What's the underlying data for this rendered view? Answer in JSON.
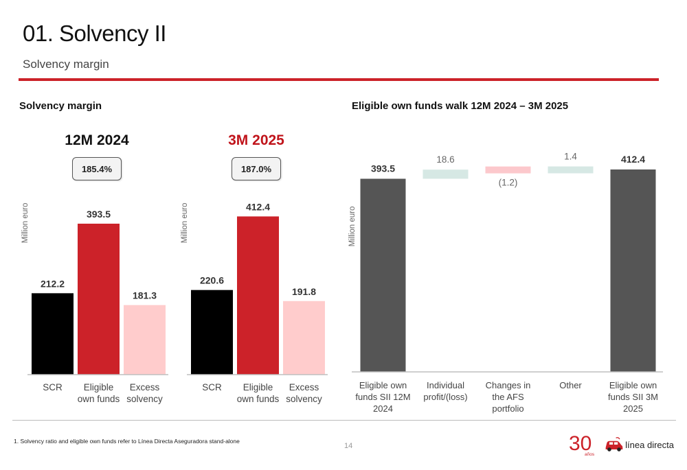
{
  "header": {
    "title": "01. Solvency II",
    "subtitle": "Solvency margin"
  },
  "left_section": {
    "title": "Solvency margin",
    "unit_label": "Million euro",
    "periods": [
      {
        "label": "12M 2024",
        "color": "#111111",
        "ratio": "185.4%"
      },
      {
        "label": "3M 2025",
        "color": "#c0141b",
        "ratio": "187.0%"
      }
    ]
  },
  "right_section": {
    "title": "Eligible own funds walk 12M 2024 – 3M 2025",
    "unit_label": "Million euro"
  },
  "chart_data": [
    {
      "type": "bar",
      "title": "12M 2024",
      "ylabel": "Million euro",
      "categories": [
        "SCR",
        "Eligible own funds",
        "Excess solvency"
      ],
      "values": [
        212.2,
        393.5,
        181.3
      ],
      "data_labels": [
        "212.2",
        "393.5",
        "181.3"
      ],
      "colors": [
        "#000000",
        "#cc2229",
        "#ffcccc"
      ],
      "ylim": [
        0,
        440
      ]
    },
    {
      "type": "bar",
      "title": "3M 2025",
      "ylabel": "Million euro",
      "categories": [
        "SCR",
        "Eligible own funds",
        "Excess solvency"
      ],
      "values": [
        220.6,
        412.4,
        191.8
      ],
      "data_labels": [
        "220.6",
        "412.4",
        "191.8"
      ],
      "colors": [
        "#000000",
        "#cc2229",
        "#ffcccc"
      ],
      "ylim": [
        0,
        440
      ]
    },
    {
      "type": "bar",
      "subtype": "waterfall",
      "ylabel": "Million euro",
      "categories": [
        "Eligible own funds SII 12M 2024",
        "Individual profit/(loss)",
        "Changes in the AFS portfolio",
        "Other",
        "Eligible own funds SII 3M 2025"
      ],
      "values": [
        393.5,
        18.6,
        -1.2,
        1.4,
        412.4
      ],
      "kinds": [
        "total",
        "delta",
        "delta",
        "delta",
        "total"
      ],
      "data_labels": [
        "393.5",
        "18.6",
        "(1.2)",
        "1.4",
        "412.4"
      ],
      "colors": [
        "#555555",
        "#d6e8e4",
        "#fcc8cc",
        "#d6e8e4",
        "#555555"
      ],
      "ylim": [
        0,
        412.4
      ]
    }
  ],
  "footer": {
    "footnote": "1. Solvency ratio and eligible own funds refer to Línea Directa Aseguradora stand-alone",
    "page_number": "14",
    "logo_anniversary": "30",
    "logo_anniversary_sub": "años",
    "logo_brand": "línea directa"
  }
}
